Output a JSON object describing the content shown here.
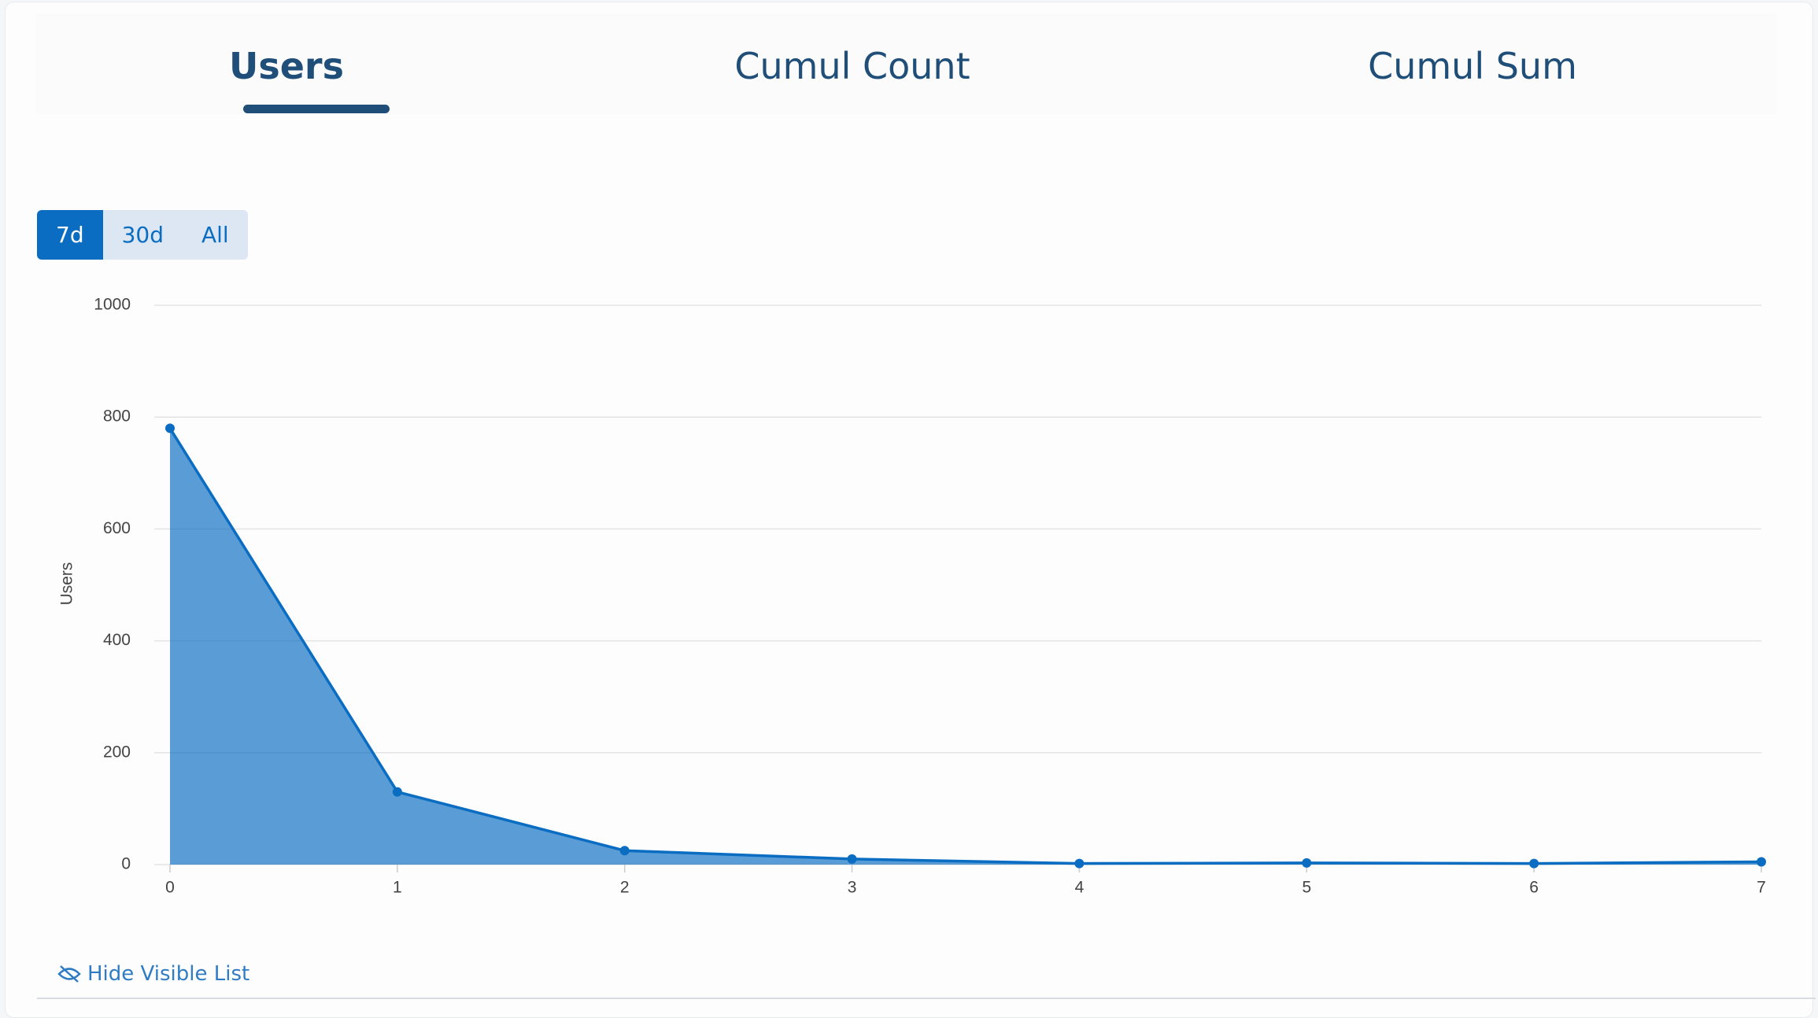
{
  "tabs": [
    "Users",
    "Cumul Count",
    "Cumul Sum"
  ],
  "range_buttons": [
    "7d",
    "30d",
    "All"
  ],
  "chart_data": {
    "type": "area",
    "ylabel": "Users",
    "x": [
      0,
      1,
      2,
      3,
      4,
      5,
      6,
      7
    ],
    "values": [
      780,
      130,
      25,
      10,
      2,
      3,
      2,
      5
    ],
    "color": "#0a6dc2",
    "xlim": [
      0,
      7
    ],
    "xticks": [
      0,
      1,
      2,
      3,
      4,
      5,
      6,
      7
    ],
    "ylim": [
      0,
      1000
    ],
    "yticks": [
      0,
      200,
      400,
      600,
      800,
      1000
    ],
    "grid": true
  },
  "link": "Hide Visible List"
}
